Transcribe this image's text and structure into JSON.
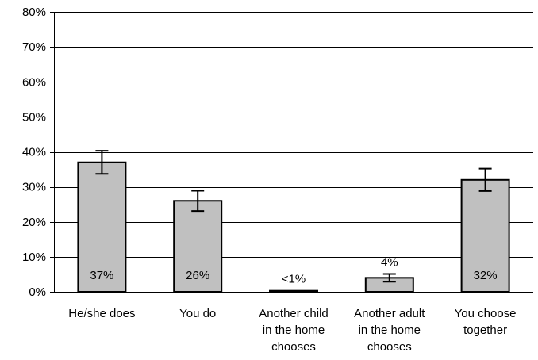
{
  "chart_data": {
    "type": "bar",
    "categories": [
      "He/she does",
      "You do",
      "Another child in the home chooses",
      "Another adult in the home chooses",
      "You choose together"
    ],
    "category_lines": [
      [
        "He/she does"
      ],
      [
        "You do"
      ],
      [
        "Another child",
        "in the home",
        "chooses"
      ],
      [
        "Another adult",
        "in the home",
        "chooses"
      ],
      [
        "You choose",
        "together"
      ]
    ],
    "values": [
      37,
      26,
      0.3,
      4,
      32
    ],
    "error_low": [
      33.7,
      23.1,
      0.3,
      2.9,
      28.8
    ],
    "error_high": [
      40.3,
      28.9,
      0.3,
      5.1,
      35.2
    ],
    "data_labels": [
      "37%",
      "26%",
      "<1%",
      "4%",
      "32%"
    ],
    "ylim": [
      0,
      80
    ],
    "y_ticks": [
      0,
      10,
      20,
      30,
      40,
      50,
      60,
      70,
      80
    ],
    "y_tick_labels": [
      "0%",
      "10%",
      "20%",
      "30%",
      "40%",
      "50%",
      "60%",
      "70%",
      "80%"
    ],
    "grid": true,
    "title": "",
    "xlabel": "",
    "ylabel": "",
    "colors": {
      "bar_fill": "#c0c0c0",
      "bar_stroke": "#000000",
      "grid": "#000000"
    }
  }
}
